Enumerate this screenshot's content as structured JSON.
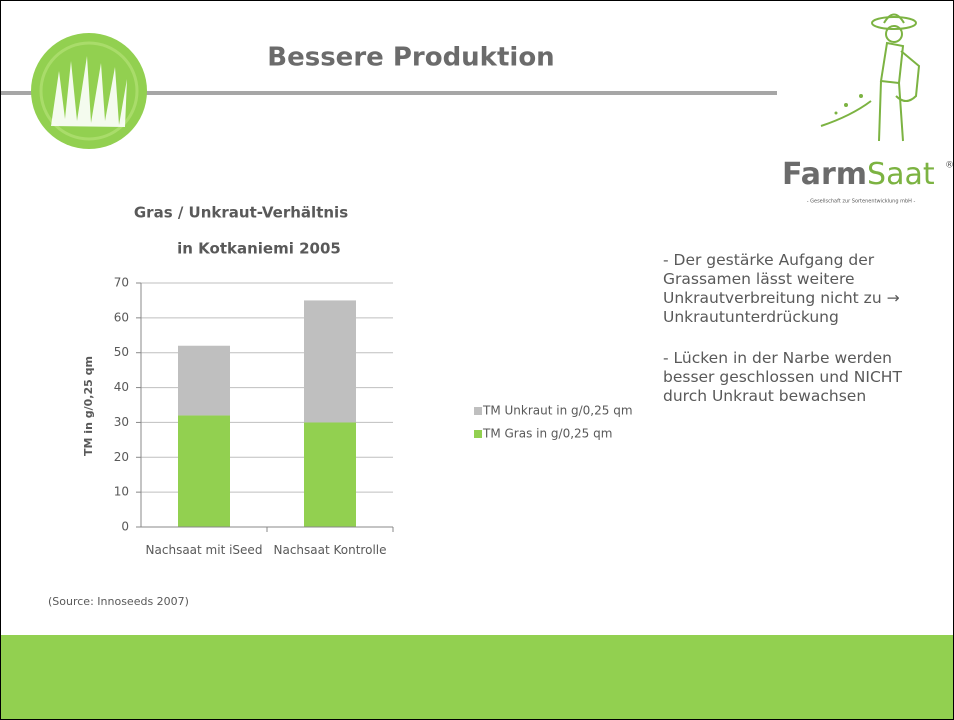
{
  "slide_title": "Bessere Produktion",
  "logo": {
    "name_bold": "Farm",
    "name_light": "Saat",
    "mark": "®",
    "tagline": "- Gesellschaft zur Sortenentwicklung mbH -"
  },
  "chart_data": {
    "type": "stacked-bar",
    "title": [
      "Gras / Unkraut-Verhältnis",
      "in Kotkaniemi 2005"
    ],
    "y_label": "TM in g/0,25 qm",
    "categories": [
      "Nachsaat mit iSeed",
      "Nachsaat Kontrolle"
    ],
    "series": [
      {
        "name": "TM Gras in g/0,25 qm",
        "color": "#92d050",
        "values": [
          32,
          30
        ]
      },
      {
        "name": "TM Unkraut in g/0,25 qm",
        "color": "#bfbfbf",
        "values": [
          20,
          35
        ]
      }
    ],
    "ylim": [
      0,
      70
    ],
    "yticks": [
      0,
      10,
      20,
      30,
      40,
      50,
      60,
      70
    ],
    "grid": true
  },
  "source": "(Source: Innoseeds 2007)",
  "paragraphs": [
    "- Der gestärke Aufgang der Grassamen lässt weitere Unkrautverbreitung nicht zu → Unkrautunterdrückung",
    "- Lücken in der Narbe werden besser geschlossen und NICHT durch Unkraut bewachsen"
  ]
}
